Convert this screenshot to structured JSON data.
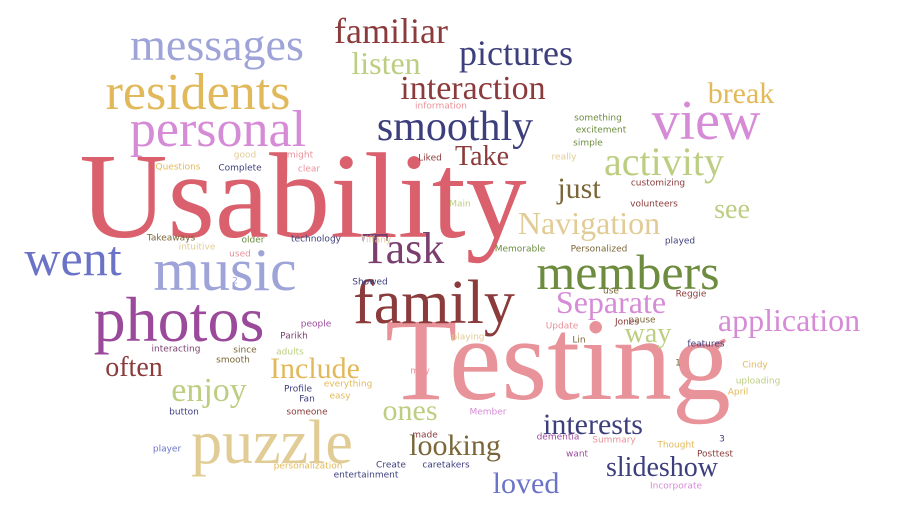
{
  "palette": {
    "red": "#d9606c",
    "pink": "#e8929a",
    "blue": "#6b73c6",
    "lightblue": "#9ea3d8",
    "navy": "#3d3f7c",
    "purple": "#9b4a9b",
    "lavender": "#d68bd6",
    "gold": "#e2b95a",
    "tan": "#e1cc95",
    "olive": "#6d8c3f",
    "green": "#8aa658",
    "lightgreen": "#bcce82",
    "brown": "#8b3b3b",
    "darkbrown": "#7a6638",
    "plum": "#7a3f6f"
  },
  "words": [
    {
      "text": "Usability",
      "color": "red"
    },
    {
      "text": "Testing",
      "color": "pink"
    },
    {
      "text": "photos",
      "color": "purple"
    },
    {
      "text": "family",
      "color": "brown"
    },
    {
      "text": "music",
      "color": "lightblue"
    },
    {
      "text": "puzzle",
      "color": "tan"
    },
    {
      "text": "members",
      "color": "olive"
    },
    {
      "text": "personal",
      "color": "lavender"
    },
    {
      "text": "residents",
      "color": "gold"
    },
    {
      "text": "view",
      "color": "lavender"
    },
    {
      "text": "messages",
      "color": "lightblue"
    },
    {
      "text": "went",
      "color": "blue"
    },
    {
      "text": "Task",
      "color": "plum"
    },
    {
      "text": "smoothly",
      "color": "navy"
    },
    {
      "text": "activity",
      "color": "lightgreen"
    },
    {
      "text": "familiar",
      "color": "brown"
    },
    {
      "text": "pictures",
      "color": "navy"
    },
    {
      "text": "interaction",
      "color": "brown"
    },
    {
      "text": "listen",
      "color": "lightgreen"
    },
    {
      "text": "break",
      "color": "gold"
    },
    {
      "text": "Navigation",
      "color": "tan"
    },
    {
      "text": "Separate",
      "color": "lavender"
    },
    {
      "text": "application",
      "color": "lavender"
    },
    {
      "text": "enjoy",
      "color": "lightgreen"
    },
    {
      "text": "slideshow",
      "color": "navy"
    },
    {
      "text": "interests",
      "color": "navy"
    },
    {
      "text": "looking",
      "color": "darkbrown"
    },
    {
      "text": "loved",
      "color": "blue"
    },
    {
      "text": "Include",
      "color": "gold"
    },
    {
      "text": "often",
      "color": "brown"
    },
    {
      "text": "way",
      "color": "lightgreen"
    },
    {
      "text": "ones",
      "color": "lightgreen"
    },
    {
      "text": "just",
      "color": "darkbrown"
    },
    {
      "text": "see",
      "color": "lightgreen"
    },
    {
      "text": "Take",
      "color": "brown"
    },
    {
      "text": "information",
      "color": "pink"
    },
    {
      "text": "something",
      "color": "olive"
    },
    {
      "text": "excitement",
      "color": "olive"
    },
    {
      "text": "simple",
      "color": "olive"
    },
    {
      "text": "good",
      "color": "tan"
    },
    {
      "text": "might",
      "color": "pink"
    },
    {
      "text": "Questions",
      "color": "gold"
    },
    {
      "text": "Complete",
      "color": "navy"
    },
    {
      "text": "clear",
      "color": "pink"
    },
    {
      "text": "Liked",
      "color": "brown"
    },
    {
      "text": "really",
      "color": "tan"
    },
    {
      "text": "customizing",
      "color": "brown"
    },
    {
      "text": "Main",
      "color": "lightgreen"
    },
    {
      "text": "volunteers",
      "color": "brown"
    },
    {
      "text": "Takeaways",
      "color": "darkbrown"
    },
    {
      "text": "intuitive",
      "color": "tan"
    },
    {
      "text": "older",
      "color": "olive"
    },
    {
      "text": "used",
      "color": "pink"
    },
    {
      "text": "technology",
      "color": "navy"
    },
    {
      "text": "Tiffany",
      "color": "tan"
    },
    {
      "text": "Memorable",
      "color": "olive"
    },
    {
      "text": "Personalized",
      "color": "darkbrown"
    },
    {
      "text": "played",
      "color": "navy"
    },
    {
      "text": "2",
      "color": "lightblue"
    },
    {
      "text": "Showed",
      "color": "navy"
    },
    {
      "text": "use",
      "color": "darkbrown"
    },
    {
      "text": "Reggie",
      "color": "brown"
    },
    {
      "text": "pause",
      "color": "darkbrown"
    },
    {
      "text": "people",
      "color": "purple"
    },
    {
      "text": "Parikh",
      "color": "plum"
    },
    {
      "text": "playing",
      "color": "tan"
    },
    {
      "text": "Update",
      "color": "pink"
    },
    {
      "text": "Jones",
      "color": "brown"
    },
    {
      "text": "Lin",
      "color": "darkbrown"
    },
    {
      "text": "interacting",
      "color": "plum"
    },
    {
      "text": "since",
      "color": "darkbrown"
    },
    {
      "text": "adults",
      "color": "lightgreen"
    },
    {
      "text": "smooth",
      "color": "darkbrown"
    },
    {
      "text": "features",
      "color": "navy"
    },
    {
      "text": "1",
      "color": "darkbrown"
    },
    {
      "text": "Cindy",
      "color": "gold"
    },
    {
      "text": "may",
      "color": "pink"
    },
    {
      "text": "Profile",
      "color": "navy"
    },
    {
      "text": "everything",
      "color": "gold"
    },
    {
      "text": "Fan",
      "color": "navy"
    },
    {
      "text": "easy",
      "color": "gold"
    },
    {
      "text": "uploading",
      "color": "lightgreen"
    },
    {
      "text": "April",
      "color": "gold"
    },
    {
      "text": "button",
      "color": "navy"
    },
    {
      "text": "someone",
      "color": "brown"
    },
    {
      "text": "Member",
      "color": "lavender"
    },
    {
      "text": "made",
      "color": "brown"
    },
    {
      "text": "dementia",
      "color": "purple"
    },
    {
      "text": "Summary",
      "color": "pink"
    },
    {
      "text": "Thought",
      "color": "gold"
    },
    {
      "text": "3",
      "color": "navy"
    },
    {
      "text": "player",
      "color": "blue"
    },
    {
      "text": "want",
      "color": "purple"
    },
    {
      "text": "Posttest",
      "color": "brown"
    },
    {
      "text": "personalization",
      "color": "gold"
    },
    {
      "text": "Create",
      "color": "navy"
    },
    {
      "text": "caretakers",
      "color": "navy"
    },
    {
      "text": "entertainment",
      "color": "navy"
    },
    {
      "text": "Incorporate",
      "color": "lavender"
    }
  ]
}
